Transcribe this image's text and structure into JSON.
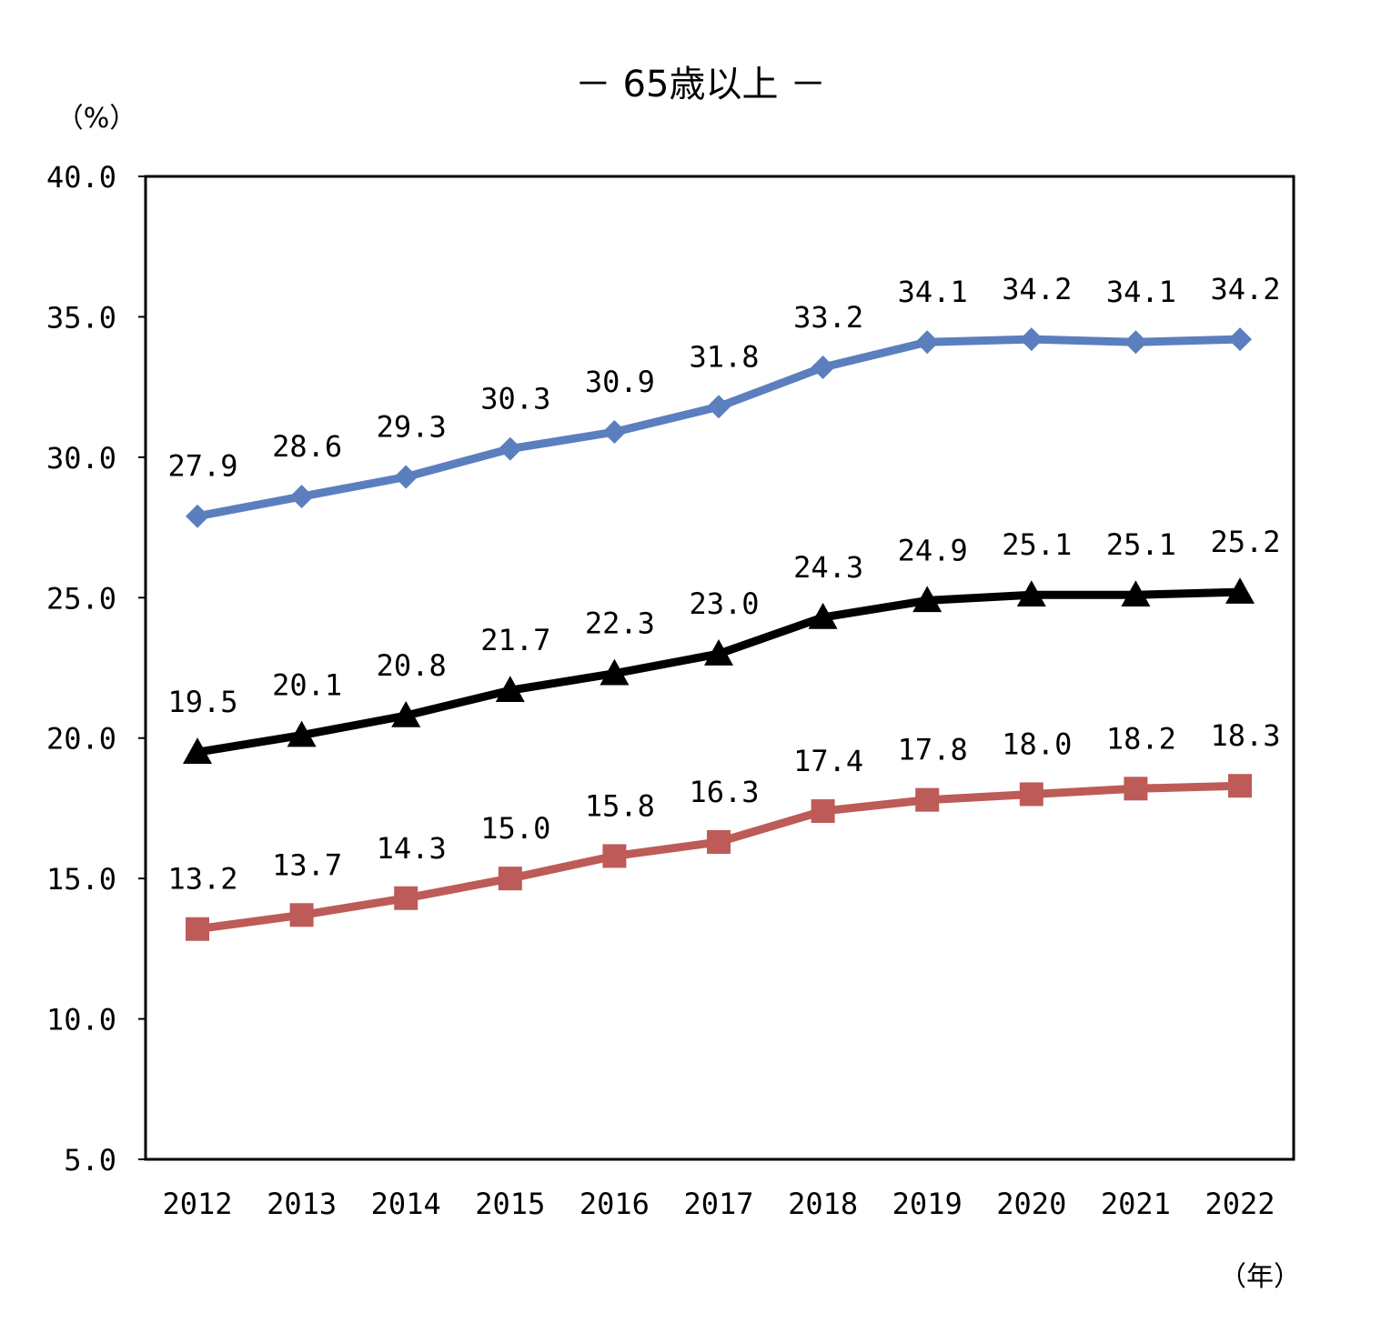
{
  "chart_data": {
    "type": "line",
    "title": "－ 65歳以上 －",
    "ylabel": "（%）",
    "xlabel": "（年）",
    "ylim": [
      5.0,
      40.0
    ],
    "y_ticks": [
      "40.0",
      "35.0",
      "30.0",
      "25.0",
      "20.0",
      "15.0",
      "10.0",
      "5.0"
    ],
    "x": [
      "2012",
      "2013",
      "2014",
      "2015",
      "2016",
      "2017",
      "2018",
      "2019",
      "2020",
      "2021",
      "2022"
    ],
    "grid": false,
    "legend": "none",
    "series": [
      {
        "marker": "diamond",
        "color": "#5b7fbe",
        "values": [
          27.9,
          28.6,
          29.3,
          30.3,
          30.9,
          31.8,
          33.2,
          34.1,
          34.2,
          34.1,
          34.2
        ],
        "labels": [
          "27.9",
          "28.6",
          "29.3",
          "30.3",
          "30.9",
          "31.8",
          "33.2",
          "34.1",
          "34.2",
          "34.1",
          "34.2"
        ]
      },
      {
        "marker": "triangle",
        "color": "#000000",
        "values": [
          19.5,
          20.1,
          20.8,
          21.7,
          22.3,
          23.0,
          24.3,
          24.9,
          25.1,
          25.1,
          25.2
        ],
        "labels": [
          "19.5",
          "20.1",
          "20.8",
          "21.7",
          "22.3",
          "23.0",
          "24.3",
          "24.9",
          "25.1",
          "25.1",
          "25.2"
        ]
      },
      {
        "marker": "square",
        "color": "#bd5b58",
        "values": [
          13.2,
          13.7,
          14.3,
          15.0,
          15.8,
          16.3,
          17.4,
          17.8,
          18.0,
          18.2,
          18.3
        ],
        "labels": [
          "13.2",
          "13.7",
          "14.3",
          "15.0",
          "15.8",
          "16.3",
          "17.4",
          "17.8",
          "18.0",
          "18.2",
          "18.3"
        ]
      }
    ]
  }
}
